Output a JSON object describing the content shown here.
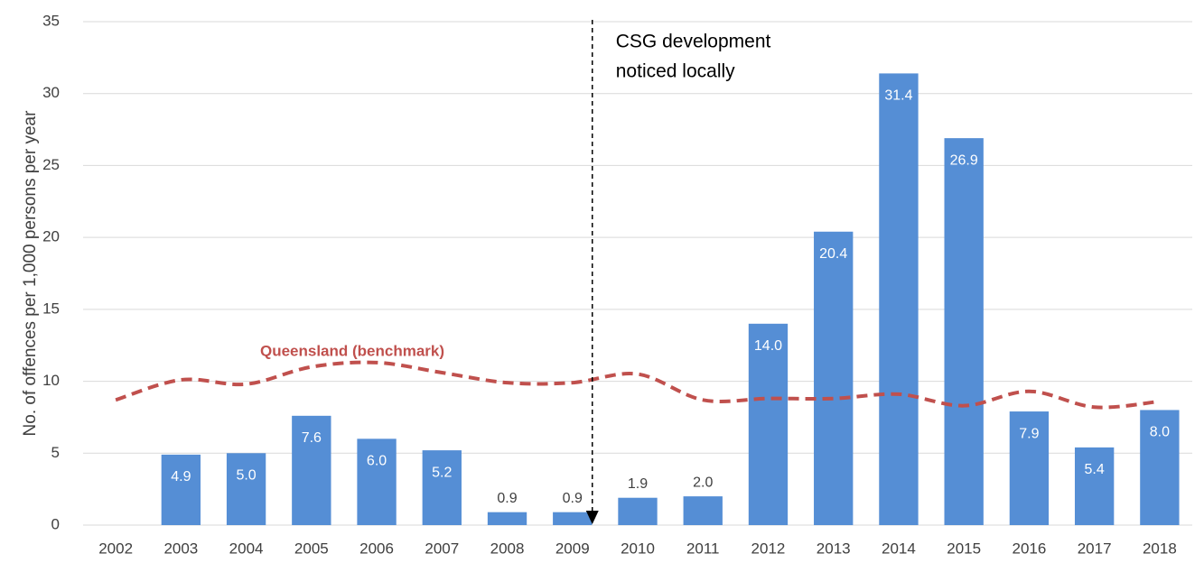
{
  "chart_data": {
    "type": "bar",
    "y_label": "No. of offences per 1,000 persons per year",
    "categories": [
      "2002",
      "2003",
      "2004",
      "2005",
      "2006",
      "2007",
      "2008",
      "2009",
      "2010",
      "2011",
      "2012",
      "2013",
      "2014",
      "2015",
      "2016",
      "2017",
      "2018"
    ],
    "series": [
      {
        "type": "bar",
        "color": "#558ed5",
        "values": [
          null,
          4.9,
          5.0,
          7.6,
          6.0,
          5.2,
          0.9,
          0.9,
          1.9,
          2.0,
          14.0,
          20.4,
          31.4,
          26.9,
          7.9,
          5.4,
          8.0
        ],
        "value_labels": [
          null,
          "4.9",
          "5.0",
          "7.6",
          "6.0",
          "5.2",
          "0.9",
          "0.9",
          "1.9",
          "2.0",
          "14.0",
          "20.4",
          "31.4",
          "26.9",
          "7.9",
          "5.4",
          "8.0"
        ]
      },
      {
        "type": "line",
        "name": "Queensland (benchmark)",
        "color": "#c0504d",
        "dashed": true,
        "values": [
          8.7,
          10.1,
          9.8,
          11.0,
          11.3,
          10.6,
          9.9,
          9.9,
          10.5,
          8.7,
          8.8,
          8.8,
          9.1,
          8.3,
          9.3,
          8.2,
          8.6
        ]
      }
    ],
    "annotation": {
      "text": [
        "CSG development",
        "noticed locally"
      ]
    },
    "ylim": [
      0,
      35
    ],
    "yticks": [
      0,
      5,
      10,
      15,
      20,
      25,
      30,
      35
    ],
    "grid": true
  }
}
